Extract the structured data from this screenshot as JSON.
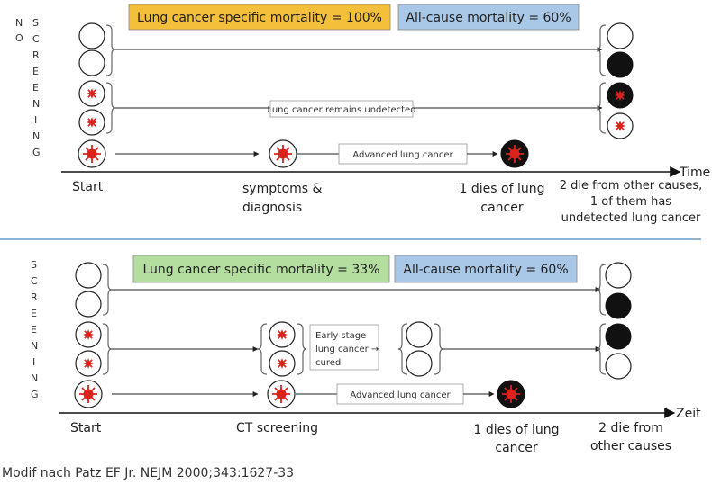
{
  "top": {
    "vertical_left": [
      "N",
      "O"
    ],
    "vertical_right": [
      "S",
      "C",
      "R",
      "E",
      "E",
      "N",
      "I",
      "N",
      "G"
    ],
    "lung_mortality": "Lung cancer specific mortality = 100%",
    "allcause_mortality": "All-cause mortality = 60%",
    "undetected_label": "Lung cancer remains undetected",
    "advanced_label": "Advanced lung cancer",
    "axis_label": "Time",
    "label_start": "Start",
    "label_symptoms": [
      "symptoms &",
      "diagnosis"
    ],
    "label_dies": [
      "1 dies of lung",
      "cancer"
    ],
    "label_other": [
      "2 die from other causes,",
      "1 of them has",
      "undetected lung cancer"
    ]
  },
  "bottom": {
    "vertical": [
      "S",
      "C",
      "R",
      "E",
      "E",
      "N",
      "I",
      "N",
      "G"
    ],
    "lung_mortality": "Lung cancer specific mortality = 33%",
    "allcause_mortality": "All-cause mortality = 60%",
    "early_label": [
      "Early stage",
      "lung cancer →",
      "cured"
    ],
    "advanced_label": "Advanced lung cancer",
    "axis_label": "Zeit",
    "label_start": "Start",
    "label_ct": "CT screening",
    "label_dies": [
      "1 dies of lung",
      "cancer"
    ],
    "label_other": [
      "2 die from",
      "other causes"
    ]
  },
  "citation": "Modif nach Patz EF Jr. NEJM 2000;343:1627-33",
  "colors": {
    "yellow_box": "#f4bf3a",
    "blue_box": "#a9c8e8",
    "green_box": "#b4dea0",
    "tumor": "#d9231b",
    "divider": "#8fb3d6"
  }
}
